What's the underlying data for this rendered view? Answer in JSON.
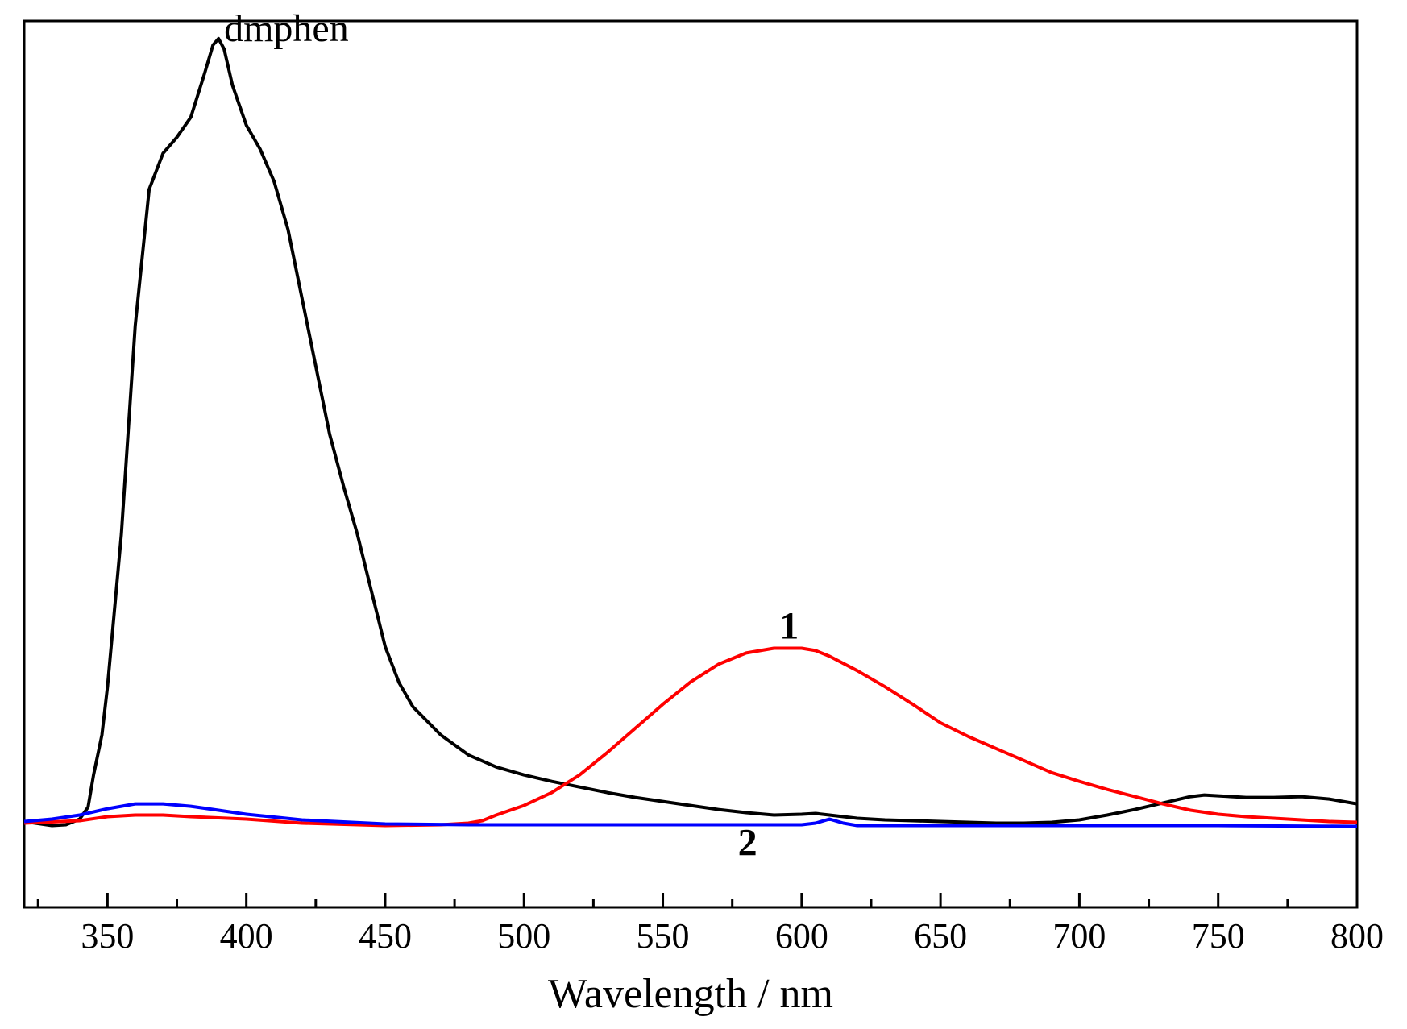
{
  "chart_data": {
    "type": "line",
    "xlabel": "Wavelength / nm",
    "ylabel": "",
    "xlim": [
      320,
      800
    ],
    "ylim": [
      -0.105,
      1.0
    ],
    "xticks": [
      350,
      400,
      450,
      500,
      550,
      600,
      650,
      700,
      750,
      800
    ],
    "xtick_labels": [
      "350",
      "400",
      "450",
      "500",
      "550",
      "600",
      "650",
      "700",
      "750",
      "800"
    ],
    "minor_xtick_step": 25,
    "yticks_shown": false,
    "grid": false,
    "legend": "none",
    "annotations": [
      {
        "text": "dmphen",
        "x": 392,
        "y": 0.975,
        "bold": false
      },
      {
        "text": "1",
        "x": 592,
        "y": 0.23,
        "bold": true
      },
      {
        "text": "2",
        "x": 577,
        "y": -0.04,
        "bold": true
      }
    ],
    "series": [
      {
        "color": "#000000",
        "x": [
          320,
          330,
          335,
          340,
          343,
          345,
          348,
          350,
          355,
          360,
          365,
          370,
          375,
          380,
          385,
          388,
          390,
          392,
          395,
          400,
          405,
          410,
          415,
          420,
          425,
          430,
          435,
          440,
          445,
          450,
          455,
          460,
          470,
          480,
          490,
          500,
          510,
          520,
          530,
          540,
          550,
          560,
          570,
          580,
          590,
          600,
          605,
          610,
          620,
          630,
          640,
          650,
          660,
          670,
          680,
          690,
          700,
          710,
          720,
          730,
          740,
          745,
          750,
          760,
          770,
          780,
          790,
          800
        ],
        "y": [
          0.002,
          -0.003,
          -0.002,
          0.005,
          0.02,
          0.06,
          0.11,
          0.17,
          0.36,
          0.62,
          0.79,
          0.835,
          0.855,
          0.88,
          0.935,
          0.97,
          0.978,
          0.965,
          0.92,
          0.87,
          0.84,
          0.8,
          0.74,
          0.655,
          0.57,
          0.485,
          0.42,
          0.36,
          0.29,
          0.22,
          0.175,
          0.145,
          0.11,
          0.085,
          0.07,
          0.06,
          0.052,
          0.045,
          0.038,
          0.032,
          0.027,
          0.022,
          0.017,
          0.013,
          0.01,
          0.011,
          0.012,
          0.01,
          0.006,
          0.004,
          0.003,
          0.002,
          0.001,
          0.0,
          0.0,
          0.001,
          0.004,
          0.01,
          0.017,
          0.025,
          0.033,
          0.035,
          0.034,
          0.032,
          0.032,
          0.033,
          0.03,
          0.024
        ]
      },
      {
        "color": "#ff0000",
        "x": [
          320,
          340,
          350,
          360,
          370,
          380,
          400,
          420,
          450,
          470,
          480,
          485,
          490,
          500,
          510,
          520,
          530,
          540,
          550,
          560,
          570,
          580,
          590,
          600,
          605,
          610,
          620,
          630,
          640,
          650,
          660,
          670,
          680,
          690,
          700,
          710,
          720,
          730,
          740,
          750,
          760,
          770,
          780,
          790,
          800
        ],
        "y": [
          0.0,
          0.003,
          0.008,
          0.01,
          0.01,
          0.008,
          0.005,
          0.0,
          -0.003,
          -0.002,
          0.0,
          0.003,
          0.01,
          0.022,
          0.038,
          0.06,
          0.088,
          0.118,
          0.148,
          0.176,
          0.198,
          0.212,
          0.218,
          0.218,
          0.215,
          0.208,
          0.19,
          0.17,
          0.148,
          0.125,
          0.108,
          0.093,
          0.078,
          0.063,
          0.052,
          0.042,
          0.033,
          0.024,
          0.016,
          0.011,
          0.008,
          0.006,
          0.004,
          0.002,
          0.001
        ]
      },
      {
        "color": "#0000ff",
        "x": [
          320,
          330,
          340,
          350,
          360,
          370,
          380,
          390,
          400,
          420,
          450,
          480,
          500,
          550,
          600,
          605,
          610,
          615,
          620,
          650,
          700,
          750,
          800
        ],
        "y": [
          0.002,
          0.005,
          0.01,
          0.018,
          0.024,
          0.024,
          0.021,
          0.016,
          0.011,
          0.004,
          -0.001,
          -0.002,
          -0.002,
          -0.002,
          -0.002,
          0.0,
          0.005,
          0.0,
          -0.003,
          -0.003,
          -0.003,
          -0.003,
          -0.004
        ]
      }
    ]
  }
}
